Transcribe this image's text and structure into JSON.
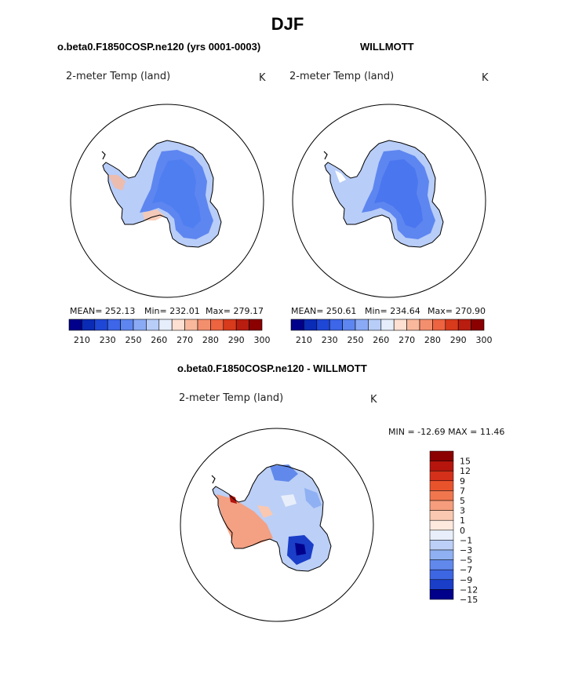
{
  "title": "DJF",
  "chart_data": [
    {
      "type": "heatmap",
      "title": "o.beta0.F1850COSP.ne120 (yrs 0001-0003)",
      "field_label": "2-meter Temp (land)",
      "units": "K",
      "stats": {
        "mean_text": "MEAN= 252.13",
        "min_text": "Min= 232.01",
        "max_text": "Max= 279.17",
        "mean": 252.13,
        "min": 232.01,
        "max": 279.17
      },
      "colorbar": {
        "levels": [
          210,
          220,
          230,
          240,
          250,
          255,
          260,
          265,
          270,
          275,
          280,
          285,
          290,
          295,
          300
        ],
        "labels": [
          "210",
          "230",
          "250",
          "260",
          "270",
          "280",
          "290",
          "300"
        ]
      }
    },
    {
      "type": "heatmap",
      "title": "WILLMOTT",
      "field_label": "2-meter Temp (land)",
      "units": "K",
      "stats": {
        "mean_text": "MEAN= 250.61",
        "min_text": "Min= 234.64",
        "max_text": "Max= 270.90",
        "mean": 250.61,
        "min": 234.64,
        "max": 270.9
      },
      "colorbar": {
        "levels": [
          210,
          220,
          230,
          240,
          250,
          255,
          260,
          265,
          270,
          275,
          280,
          285,
          290,
          295,
          300
        ],
        "labels": [
          "210",
          "230",
          "250",
          "260",
          "270",
          "280",
          "290",
          "300"
        ]
      }
    },
    {
      "type": "heatmap",
      "title": "o.beta0.F1850COSP.ne120 - WILLMOTT",
      "field_label": "2-meter Temp (land)",
      "units": "K",
      "stats": {
        "text": "MIN = -12.69 MAX =  11.46",
        "min": -12.69,
        "max": 11.46
      },
      "colorbar": {
        "labels": [
          "15",
          "12",
          "9",
          "7",
          "5",
          "3",
          "1",
          "0",
          "−1",
          "−3",
          "−5",
          "−7",
          "−9",
          "−12",
          "−15"
        ]
      }
    }
  ],
  "colors": {
    "abs_scale": [
      "#00008b",
      "#0a2bb5",
      "#1f47d6",
      "#3d66e8",
      "#5e86f0",
      "#8aaaf5",
      "#b8cdf8",
      "#e6eefc",
      "#fde0d2",
      "#f9b89c",
      "#f48f6e",
      "#ee6440",
      "#d83a1c",
      "#b81d10",
      "#8b0000"
    ],
    "diff_scale": [
      "#8b0000",
      "#b5150d",
      "#d4301a",
      "#e9532c",
      "#f0764e",
      "#f59d7c",
      "#fac8b0",
      "#fde9de",
      "#e8effb",
      "#bccff6",
      "#8fb0f2",
      "#6189ec",
      "#3d66e2",
      "#1a3ec8",
      "#00008b"
    ],
    "land_abs_a": "#4f7ef0",
    "land_abs_b": "#4a76ef"
  }
}
